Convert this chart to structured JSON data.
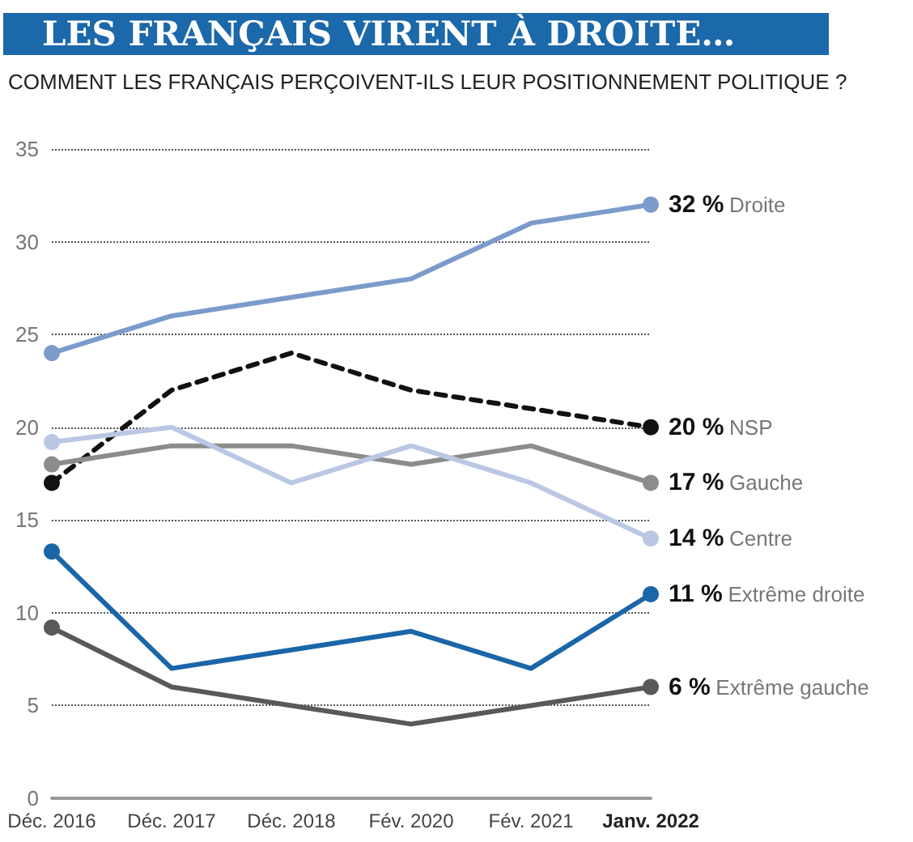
{
  "chart_data": {
    "type": "line",
    "title": "LES FRANÇAIS VIRENT À DROITE…",
    "subtitle": "COMMENT LES FRANÇAIS  PERÇOIVENT-ILS LEUR POSITIONNEMENT POLITIQUE ?",
    "categories": [
      "Déc. 2016",
      "Déc. 2017",
      "Déc. 2018",
      "Fév. 2020",
      "Fév. 2021",
      "Janv. 2022"
    ],
    "series": [
      {
        "name": "Droite",
        "color": "#7b9bcb",
        "values": [
          24,
          26,
          27,
          28,
          31,
          32
        ],
        "value_labels": [
          null,
          null,
          null,
          null,
          null,
          "32 %"
        ]
      },
      {
        "name": "NSP",
        "color": "#111111",
        "line_style": "dashed",
        "values": [
          17,
          22,
          24,
          22,
          21,
          20
        ],
        "value_labels": [
          null,
          null,
          null,
          null,
          null,
          "20 %"
        ]
      },
      {
        "name": "Gauche",
        "color": "#8c8c8c",
        "values": [
          18,
          19,
          19,
          18,
          19,
          17
        ],
        "value_labels": [
          null,
          null,
          null,
          null,
          null,
          "17 %"
        ]
      },
      {
        "name": "Centre",
        "color": "#bac8e4",
        "values": [
          19.2,
          20,
          17,
          19,
          17,
          14
        ],
        "value_labels": [
          null,
          null,
          null,
          null,
          null,
          "14 %"
        ]
      },
      {
        "name": "Extrême droite",
        "color": "#1a66a8",
        "values": [
          13.3,
          7,
          8,
          9,
          7,
          11
        ],
        "value_labels": [
          null,
          null,
          null,
          null,
          null,
          "11 %"
        ]
      },
      {
        "name": "Extrême gauche",
        "color": "#595959",
        "values": [
          9.2,
          6,
          5,
          4,
          5,
          6
        ],
        "value_labels": [
          null,
          null,
          null,
          null,
          null,
          "6 %"
        ]
      }
    ],
    "ylim": [
      0,
      35
    ],
    "yticks": [
      0,
      5,
      10,
      15,
      20,
      25,
      30,
      35
    ],
    "grid": "y",
    "line_style": "solid",
    "legend": false
  }
}
